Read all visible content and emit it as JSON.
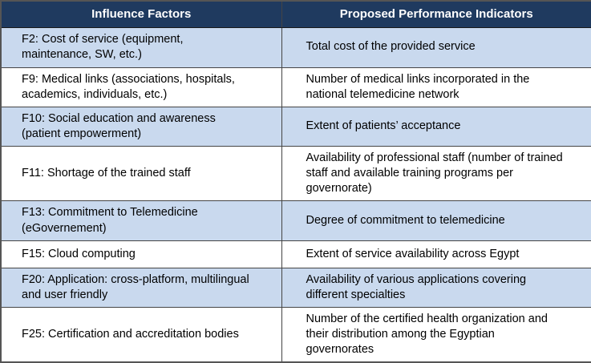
{
  "table": {
    "headers": {
      "factors": "Influence Factors",
      "indicators": "Proposed Performance Indicators"
    },
    "rows": [
      {
        "factor": "F2: Cost of service (equipment,\nmaintenance, SW, etc.)",
        "indicator": "Total cost of the provided service"
      },
      {
        "factor": "F9: Medical links (associations, hospitals,\nacademics, individuals, etc.)",
        "indicator": "Number of medical links incorporated in the\nnational telemedicine network"
      },
      {
        "factor": "F10: Social education and awareness\n(patient empowerment)",
        "indicator": "Extent of patients’ acceptance"
      },
      {
        "factor": "F11: Shortage of the trained staff",
        "indicator": "Availability of professional staff (number of trained\nstaff and available training programs per\ngovernorate)"
      },
      {
        "factor": "F13: Commitment to Telemedicine\n(eGovernement)",
        "indicator": "Degree of commitment to telemedicine"
      },
      {
        "factor": "F15: Cloud computing",
        "indicator": "Extent of service availability across Egypt"
      },
      {
        "factor": "F20: Application: cross-platform, multilingual\nand user friendly",
        "indicator": "Availability of various applications covering\ndifferent specialties"
      },
      {
        "factor": "F25: Certification and accreditation bodies",
        "indicator": "Number of the certified health organization and\ntheir distribution among the Egyptian\ngovernorates"
      }
    ]
  },
  "colors": {
    "header_bg": "#1f3a5f",
    "header_text": "#ffffff",
    "row_alt_bg": "#c9d9ee",
    "row_bg": "#ffffff",
    "border": "#454545",
    "body_text": "#000000"
  }
}
